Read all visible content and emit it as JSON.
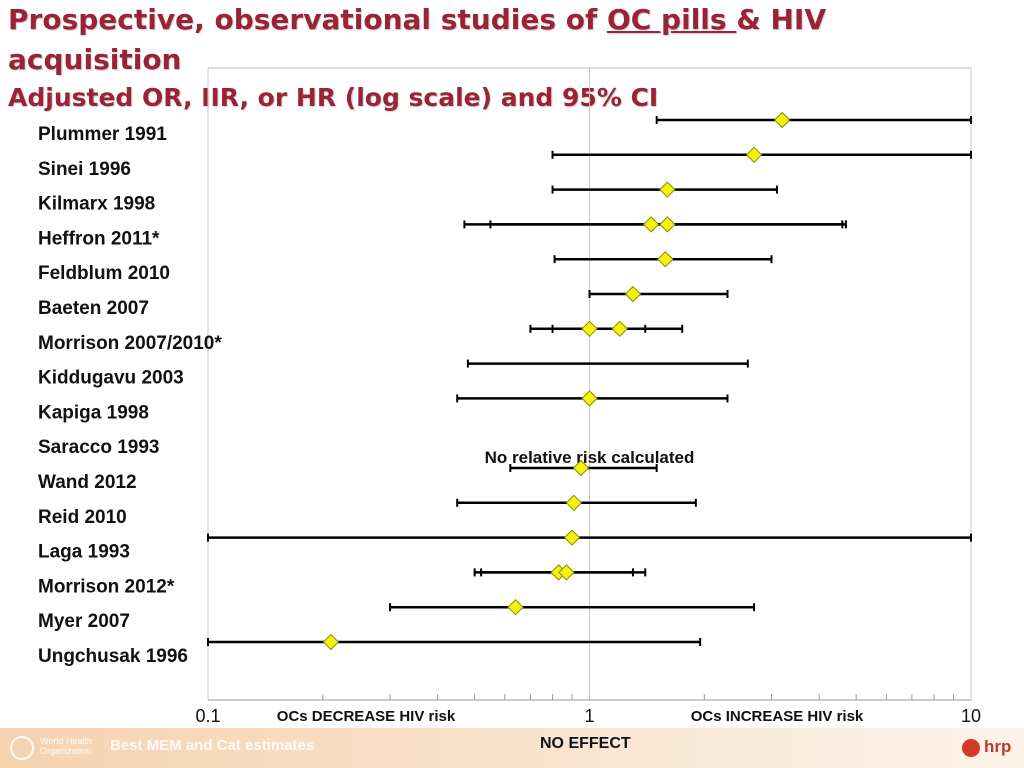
{
  "slide": {
    "title_part1": "Prospective, observational studies of ",
    "title_underlined": "OC pills ",
    "title_part2": "& HIV acquisition",
    "subtitle": "Adjusted OR, IIR, or HR (log scale) and 95% CI",
    "footer_left": "Best MEM and Cat estimates",
    "footer_org": "World Health\nOrganization",
    "footer_center": "NO EFFECT",
    "footer_logo": "hrp"
  },
  "chart_data": {
    "type": "forest",
    "scale": "log",
    "xlim": [
      0.1,
      10
    ],
    "x_ticks": [
      {
        "value": 0.1,
        "label": "0.1"
      },
      {
        "value": 1,
        "label": "1"
      },
      {
        "value": 10,
        "label": "10"
      }
    ],
    "axis_annotations": {
      "left": "OCs DECREASE HIV risk",
      "right": "OCs INCREASE HIV risk"
    },
    "reference_line": 1,
    "marker_color": "#f2f20a",
    "line_color": "#000000",
    "studies": [
      {
        "name": "Plummer 1991",
        "estimates": [
          {
            "point": 3.2,
            "lower": 1.5,
            "upper": 10
          }
        ]
      },
      {
        "name": "Sinei 1996",
        "estimates": [
          {
            "point": 2.7,
            "lower": 0.8,
            "upper": 10
          }
        ]
      },
      {
        "name": "Kilmarx 1998",
        "estimates": [
          {
            "point": 1.6,
            "lower": 0.8,
            "upper": 3.1
          }
        ]
      },
      {
        "name": "Heffron 2011*",
        "estimates": [
          {
            "point": 1.45,
            "lower": 0.47,
            "upper": 4.6
          },
          {
            "point": 1.6,
            "lower": 0.55,
            "upper": 4.7
          }
        ]
      },
      {
        "name": "Feldblum 2010",
        "estimates": [
          {
            "point": 1.58,
            "lower": 0.81,
            "upper": 3.0
          }
        ]
      },
      {
        "name": "Baeten 2007",
        "estimates": [
          {
            "point": 1.3,
            "lower": 1.0,
            "upper": 2.3
          }
        ]
      },
      {
        "name": "Morrison 2007/2010*",
        "estimates": [
          {
            "point": 1.0,
            "lower": 0.7,
            "upper": 1.75
          },
          {
            "point": 1.2,
            "lower": 0.8,
            "upper": 1.4
          }
        ]
      },
      {
        "name": "Kiddugavu 2003",
        "estimates": [
          {
            "point": null,
            "lower": 0.48,
            "upper": 2.6
          }
        ]
      },
      {
        "name": "Kapiga 1998",
        "estimates": [
          {
            "point": 1.0,
            "lower": 0.45,
            "upper": 2.3
          }
        ]
      },
      {
        "name": "Saracco 1993",
        "estimates": [],
        "note": "No relative risk calculated"
      },
      {
        "name": "Wand 2012",
        "estimates": [
          {
            "point": 0.95,
            "lower": 0.62,
            "upper": 1.5
          }
        ]
      },
      {
        "name": "Reid 2010",
        "estimates": [
          {
            "point": 0.91,
            "lower": 0.45,
            "upper": 1.9
          }
        ]
      },
      {
        "name": "Laga 1993",
        "estimates": [
          {
            "point": 0.9,
            "lower": 0.1,
            "upper": 10
          }
        ]
      },
      {
        "name": "Morrison 2012*",
        "estimates": [
          {
            "point": 0.83,
            "lower": 0.5,
            "upper": 1.3
          },
          {
            "point": 0.87,
            "lower": 0.52,
            "upper": 1.4
          }
        ]
      },
      {
        "name": "Myer 2007",
        "estimates": [
          {
            "point": 0.64,
            "lower": 0.3,
            "upper": 2.7
          }
        ]
      },
      {
        "name": "Ungchusak 1996",
        "estimates": [
          {
            "point": 0.21,
            "lower": 0.1,
            "upper": 1.95
          }
        ]
      }
    ]
  }
}
